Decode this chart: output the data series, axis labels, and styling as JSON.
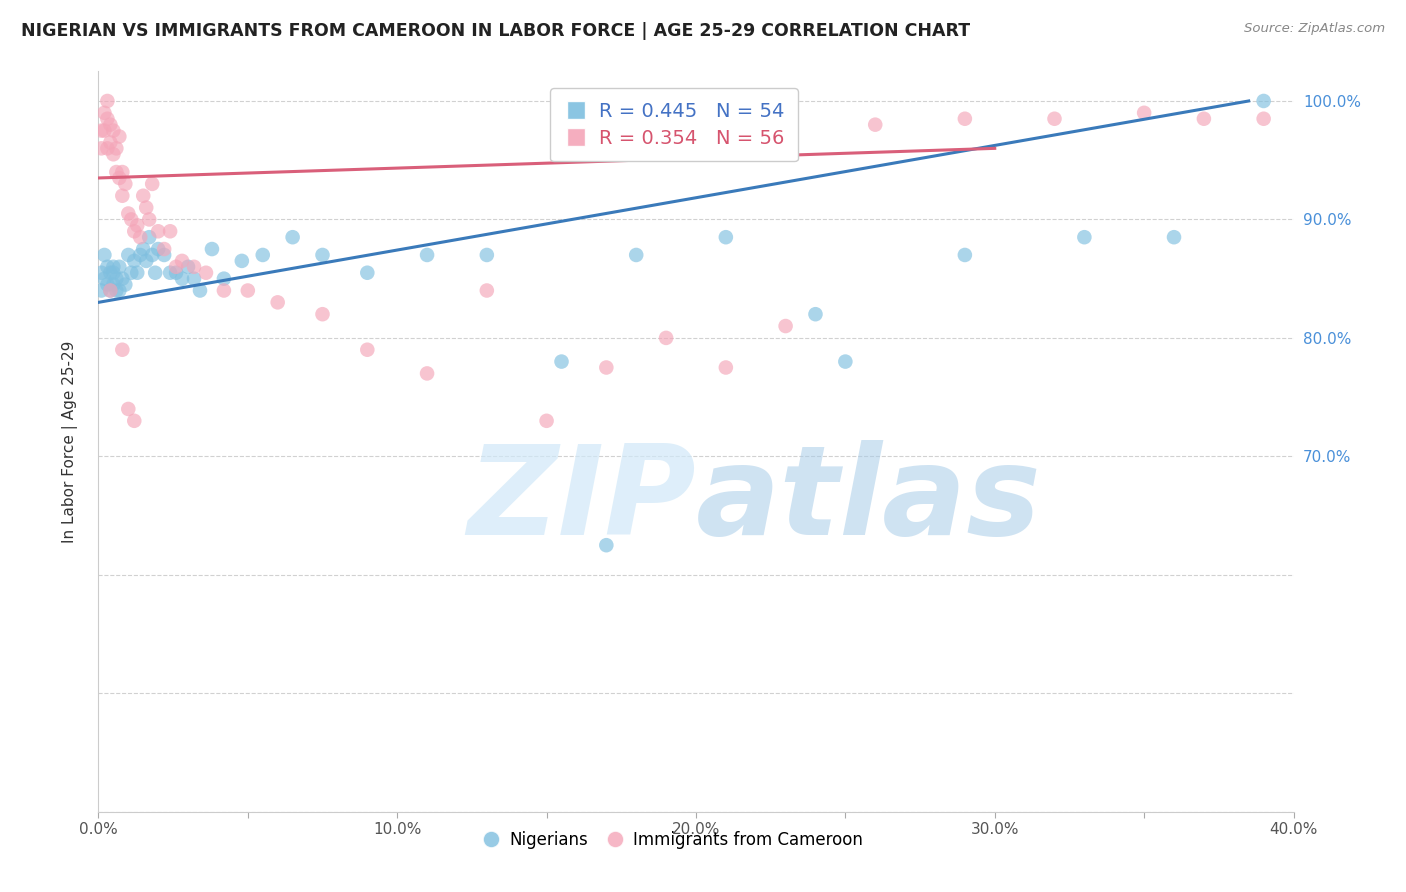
{
  "title": "NIGERIAN VS IMMIGRANTS FROM CAMEROON IN LABOR FORCE | AGE 25-29 CORRELATION CHART",
  "source": "Source: ZipAtlas.com",
  "xlabel": "",
  "ylabel": "In Labor Force | Age 25-29",
  "xlim": [
    0.0,
    0.4
  ],
  "ylim": [
    0.4,
    1.025
  ],
  "xticks": [
    0.0,
    0.05,
    0.1,
    0.15,
    0.2,
    0.25,
    0.3,
    0.35,
    0.4
  ],
  "yticks": [
    0.4,
    0.5,
    0.6,
    0.7,
    0.8,
    0.9,
    1.0
  ],
  "ytick_labels_right": [
    "",
    "",
    "",
    "70.0%",
    "80.0%",
    "90.0%",
    "100.0%"
  ],
  "xtick_labels": [
    "0.0%",
    "",
    "10.0%",
    "",
    "20.0%",
    "",
    "30.0%",
    "",
    "40.0%"
  ],
  "blue_color": "#7fbfdf",
  "pink_color": "#f4a5b8",
  "blue_line_color": "#3a7aba",
  "pink_line_color": "#d95f7a",
  "legend_blue_r": "R = 0.445",
  "legend_blue_n": "N = 54",
  "legend_pink_r": "R = 0.354",
  "legend_pink_n": "N = 56",
  "watermark_zip": "ZIP",
  "watermark_atlas": "atlas",
  "legend_label_blue": "Nigerians",
  "legend_label_pink": "Immigrants from Cameroon",
  "blue_x": [
    0.001,
    0.001,
    0.002,
    0.002,
    0.003,
    0.003,
    0.004,
    0.004,
    0.005,
    0.005,
    0.005,
    0.006,
    0.006,
    0.007,
    0.007,
    0.008,
    0.009,
    0.01,
    0.011,
    0.012,
    0.013,
    0.014,
    0.015,
    0.016,
    0.017,
    0.018,
    0.019,
    0.02,
    0.022,
    0.024,
    0.026,
    0.028,
    0.03,
    0.032,
    0.034,
    0.038,
    0.042,
    0.048,
    0.055,
    0.065,
    0.075,
    0.09,
    0.11,
    0.13,
    0.155,
    0.18,
    0.21,
    0.25,
    0.29,
    0.33,
    0.36,
    0.39,
    0.24,
    0.17
  ],
  "blue_y": [
    0.855,
    0.84,
    0.87,
    0.85,
    0.86,
    0.845,
    0.855,
    0.84,
    0.86,
    0.845,
    0.855,
    0.84,
    0.85,
    0.86,
    0.84,
    0.85,
    0.845,
    0.87,
    0.855,
    0.865,
    0.855,
    0.87,
    0.875,
    0.865,
    0.885,
    0.87,
    0.855,
    0.875,
    0.87,
    0.855,
    0.855,
    0.85,
    0.86,
    0.85,
    0.84,
    0.875,
    0.85,
    0.865,
    0.87,
    0.885,
    0.87,
    0.855,
    0.87,
    0.87,
    0.78,
    0.87,
    0.885,
    0.78,
    0.87,
    0.885,
    0.885,
    1.0,
    0.82,
    0.625
  ],
  "pink_x": [
    0.001,
    0.001,
    0.002,
    0.002,
    0.003,
    0.003,
    0.003,
    0.004,
    0.004,
    0.005,
    0.005,
    0.006,
    0.006,
    0.007,
    0.007,
    0.008,
    0.008,
    0.009,
    0.01,
    0.011,
    0.012,
    0.013,
    0.014,
    0.015,
    0.016,
    0.017,
    0.018,
    0.02,
    0.022,
    0.024,
    0.026,
    0.028,
    0.032,
    0.036,
    0.042,
    0.05,
    0.06,
    0.075,
    0.09,
    0.11,
    0.13,
    0.15,
    0.17,
    0.19,
    0.21,
    0.23,
    0.26,
    0.29,
    0.32,
    0.35,
    0.37,
    0.39,
    0.004,
    0.008,
    0.01,
    0.012
  ],
  "pink_y": [
    0.975,
    0.96,
    0.99,
    0.975,
    1.0,
    0.985,
    0.96,
    0.98,
    0.965,
    0.975,
    0.955,
    0.94,
    0.96,
    0.935,
    0.97,
    0.94,
    0.92,
    0.93,
    0.905,
    0.9,
    0.89,
    0.895,
    0.885,
    0.92,
    0.91,
    0.9,
    0.93,
    0.89,
    0.875,
    0.89,
    0.86,
    0.865,
    0.86,
    0.855,
    0.84,
    0.84,
    0.83,
    0.82,
    0.79,
    0.77,
    0.84,
    0.73,
    0.775,
    0.8,
    0.775,
    0.81,
    0.98,
    0.985,
    0.985,
    0.99,
    0.985,
    0.985,
    0.84,
    0.79,
    0.74,
    0.73
  ]
}
